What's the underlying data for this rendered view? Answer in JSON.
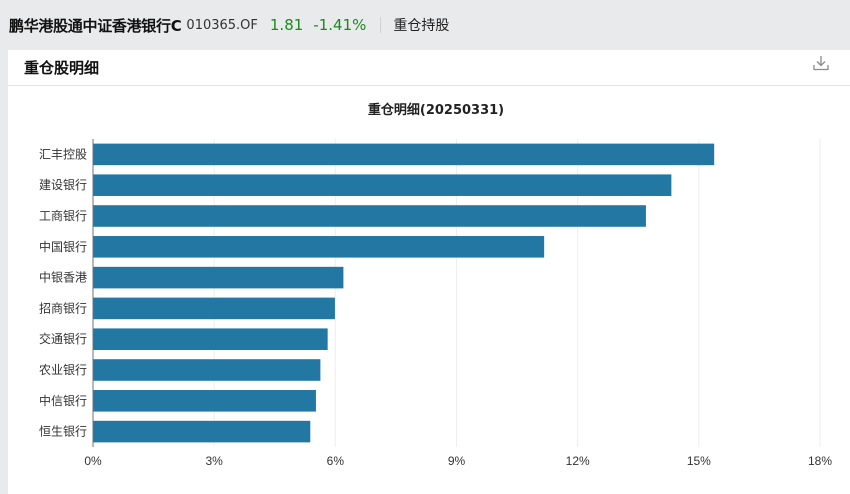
{
  "header": {
    "fund_name": "鹏华港股通中证香港银行C",
    "fund_code": "010365.OF",
    "price": "1.81",
    "change": "-1.41%",
    "tab_label": "重仓持股",
    "price_color": "#1a8a1a"
  },
  "panel": {
    "title": "重仓股明细",
    "download_icon": "download-icon"
  },
  "chart_data": {
    "type": "bar",
    "orientation": "horizontal",
    "title": "重仓明细(20250331)",
    "categories": [
      "汇丰控股",
      "建设银行",
      "工商银行",
      "中国银行",
      "中银香港",
      "招商银行",
      "交通银行",
      "农业银行",
      "中信银行",
      "恒生银行"
    ],
    "values": [
      15.38,
      14.32,
      13.69,
      11.17,
      6.2,
      5.99,
      5.81,
      5.63,
      5.52,
      5.38
    ],
    "xlim": [
      0,
      18
    ],
    "xticks": [
      "0%",
      "3%",
      "6%",
      "9%",
      "12%",
      "15%",
      "18%"
    ],
    "xlabel": "",
    "ylabel": "",
    "bar_color": "#2277a3",
    "grid": true,
    "legend": "none"
  }
}
